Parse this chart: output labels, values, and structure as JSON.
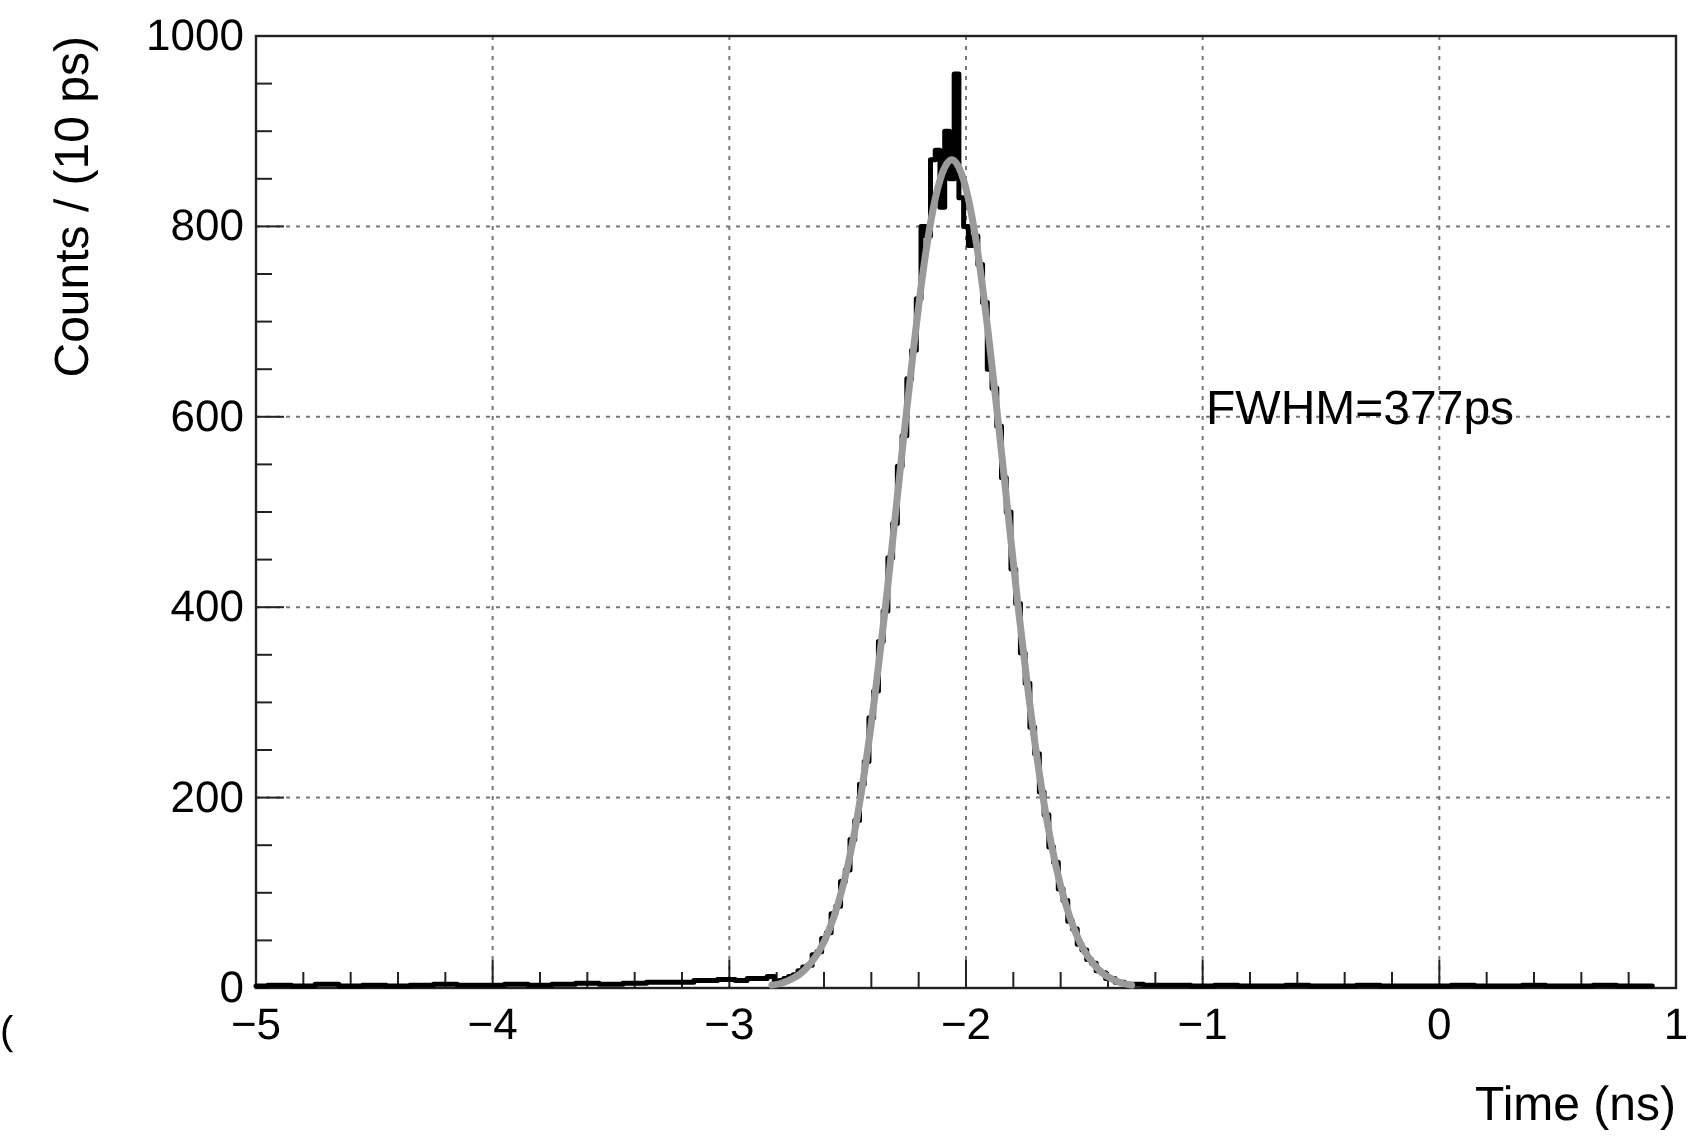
{
  "chart_data": {
    "type": "step",
    "xlabel": "Time (ns)",
    "ylabel": "Counts / (10 ps)",
    "xlim": [
      -5,
      1
    ],
    "ylim": [
      0,
      1000
    ],
    "xticks": [
      -5,
      {
        "value": -4.8,
        "label": null
      },
      {
        "value": -4.6,
        "label": null
      },
      {
        "value": -4.4,
        "label": null
      },
      {
        "value": -4.2,
        "label": null
      },
      {
        "value": -4,
        "label": "−4"
      },
      {
        "value": -3.8,
        "label": null
      },
      {
        "value": -3.6,
        "label": null
      },
      {
        "value": -3.4,
        "label": null
      },
      {
        "value": -3.2,
        "label": null
      },
      {
        "value": -3,
        "label": "−3"
      },
      {
        "value": -2.8,
        "label": null
      },
      {
        "value": -2.6,
        "label": null
      },
      {
        "value": -2.4,
        "label": null
      },
      {
        "value": -2.2,
        "label": null
      },
      {
        "value": -2,
        "label": "−2"
      },
      {
        "value": -1.8,
        "label": null
      },
      {
        "value": -1.6,
        "label": null
      },
      {
        "value": -1.4,
        "label": null
      },
      {
        "value": -1.2,
        "label": null
      },
      {
        "value": -1,
        "label": "−1"
      },
      {
        "value": -0.8,
        "label": null
      },
      {
        "value": -0.6,
        "label": null
      },
      {
        "value": -0.4,
        "label": null
      },
      {
        "value": -0.2,
        "label": null
      },
      0,
      {
        "value": 0.2,
        "label": null
      },
      {
        "value": 0.4,
        "label": null
      },
      {
        "value": 0.6,
        "label": null
      },
      {
        "value": 0.8,
        "label": null
      },
      1
    ],
    "yticks": [
      0,
      {
        "value": 50,
        "label": null
      },
      {
        "value": 100,
        "label": null
      },
      {
        "value": 150,
        "label": null
      },
      200,
      {
        "value": 250,
        "label": null
      },
      {
        "value": 300,
        "label": null
      },
      {
        "value": 350,
        "label": null
      },
      400,
      {
        "value": 450,
        "label": null
      },
      {
        "value": 500,
        "label": null
      },
      {
        "value": 550,
        "label": null
      },
      600,
      {
        "value": 650,
        "label": null
      },
      {
        "value": 700,
        "label": null
      },
      {
        "value": 750,
        "label": null
      },
      800,
      {
        "value": 850,
        "label": null
      },
      {
        "value": 900,
        "label": null
      },
      {
        "value": 950,
        "label": null
      },
      1000
    ],
    "grid": true,
    "annotations": [
      "FWHM=377ps",
      "("
    ],
    "series": [
      {
        "type": "step",
        "color": "#000000",
        "x": [
          -5,
          -4.9,
          -4.8,
          -4.7,
          -4.6,
          -4.5,
          -4.4,
          -4.3,
          -4.2,
          -4.1,
          -4,
          -3.9,
          -3.8,
          -3.7,
          -3.6,
          -3.5,
          -3.4,
          -3.3,
          -3.2,
          -3.1,
          -3,
          -2.95,
          -2.9,
          -2.86,
          -2.82,
          -2.8,
          -2.78,
          -2.76,
          -2.74,
          -2.72,
          -2.7,
          -2.68,
          -2.66,
          -2.64,
          -2.62,
          -2.6,
          -2.58,
          -2.56,
          -2.54,
          -2.52,
          -2.5,
          -2.48,
          -2.46,
          -2.44,
          -2.42,
          -2.4,
          -2.38,
          -2.36,
          -2.34,
          -2.32,
          -2.3,
          -2.28,
          -2.26,
          -2.24,
          -2.22,
          -2.2,
          -2.18,
          -2.16,
          -2.14,
          -2.12,
          -2.1,
          -2.08,
          -2.06,
          -2.04,
          -2.02,
          -2,
          -1.98,
          -1.96,
          -1.94,
          -1.92,
          -1.9,
          -1.88,
          -1.86,
          -1.84,
          -1.82,
          -1.8,
          -1.78,
          -1.76,
          -1.74,
          -1.72,
          -1.7,
          -1.68,
          -1.66,
          -1.64,
          -1.62,
          -1.6,
          -1.58,
          -1.56,
          -1.54,
          -1.52,
          -1.5,
          -1.48,
          -1.46,
          -1.44,
          -1.42,
          -1.4,
          -1.38,
          -1.36,
          -1.34,
          -1.32,
          -1.3,
          -1.2,
          -1.1,
          -1,
          -0.9,
          -0.8,
          -0.7,
          -0.6,
          -0.5,
          -0.4,
          -0.3,
          -0.2,
          -0.1,
          0,
          0.1,
          0.2,
          0.3,
          0.4,
          0.5,
          0.6,
          0.7,
          0.8,
          0.9
        ],
        "values": [
          2,
          3,
          2,
          4,
          2,
          3,
          2,
          3,
          4,
          3,
          3,
          4,
          3,
          4,
          5,
          4,
          5,
          6,
          6,
          8,
          9,
          8,
          10,
          10,
          12,
          6,
          8,
          10,
          12,
          14,
          18,
          22,
          24,
          35,
          38,
          52,
          58,
          78,
          86,
          112,
          124,
          156,
          176,
          214,
          238,
          284,
          312,
          364,
          396,
          452,
          488,
          548,
          580,
          640,
          670,
          724,
          800,
          790,
          870,
          880,
          820,
          900,
          850,
          960,
          830,
          800,
          780,
          790,
          760,
          720,
          650,
          630,
          590,
          536,
          500,
          440,
          404,
          352,
          320,
          274,
          246,
          206,
          182,
          148,
          132,
          104,
          92,
          70,
          62,
          46,
          40,
          30,
          26,
          18,
          16,
          10,
          10,
          6,
          6,
          4,
          4,
          3,
          3,
          2,
          3,
          2,
          2,
          3,
          2,
          2,
          3,
          2,
          2,
          2,
          3,
          2,
          2,
          3,
          2,
          2,
          3,
          2,
          2
        ]
      },
      {
        "type": "line",
        "color": "#9a9a9a",
        "x": [
          -2.82,
          -2.78,
          -2.74,
          -2.7,
          -2.66,
          -2.62,
          -2.58,
          -2.54,
          -2.5,
          -2.46,
          -2.42,
          -2.38,
          -2.34,
          -2.3,
          -2.26,
          -2.22,
          -2.18,
          -2.14,
          -2.1,
          -2.06,
          -2.02,
          -1.98,
          -1.94,
          -1.9,
          -1.86,
          -1.82,
          -1.78,
          -1.74,
          -1.7,
          -1.66,
          -1.62,
          -1.58,
          -1.54,
          -1.5,
          -1.46,
          -1.42,
          -1.38,
          -1.34,
          -1.3
        ],
        "values": [
          3,
          5,
          9,
          15,
          25,
          39,
          60,
          89,
          128,
          179,
          242,
          317,
          401,
          493,
          586,
          675,
          755,
          817,
          856,
          870,
          856,
          817,
          755,
          675,
          586,
          493,
          401,
          317,
          242,
          179,
          128,
          89,
          60,
          39,
          25,
          15,
          9,
          5,
          3
        ]
      }
    ]
  }
}
